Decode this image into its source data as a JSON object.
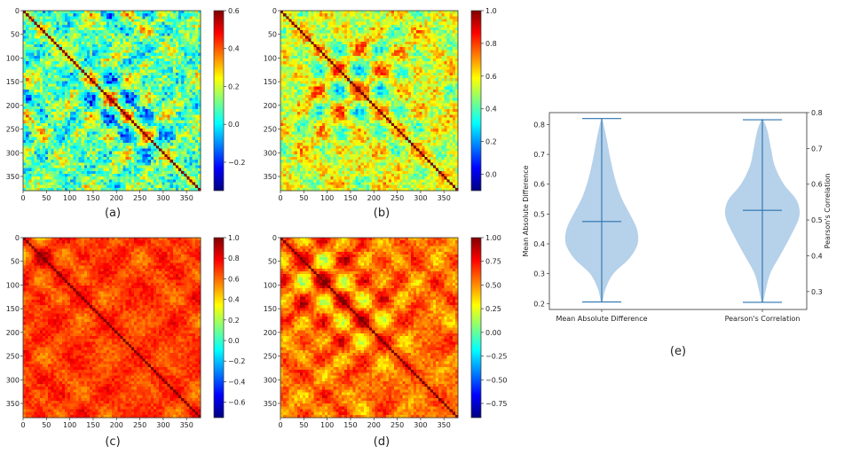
{
  "colors": {
    "jet": [
      "#00007f",
      "#0000ff",
      "#007fff",
      "#00ffff",
      "#7fff7f",
      "#ffff00",
      "#ff7f00",
      "#ff0000",
      "#7f0000"
    ],
    "violin_fill": "#a9c9e6",
    "violin_line": "#2b73b0"
  },
  "chart_data": [
    {
      "type": "heatmap",
      "panel_label": "(a)",
      "matrix_size": 380,
      "x_ticks": [
        0,
        50,
        100,
        150,
        200,
        250,
        300,
        350
      ],
      "y_ticks": [
        0,
        50,
        100,
        150,
        200,
        250,
        300,
        350
      ],
      "colorbar_range": [
        -0.35,
        0.6
      ],
      "colorbar_ticks": [
        -0.2,
        0.0,
        0.2,
        0.4,
        0.6
      ],
      "colorbar_tick_labels": [
        "−0.2",
        "0.0",
        "0.2",
        "0.4",
        "0.6"
      ],
      "colormap": "jet",
      "texture": {
        "mean": 0.1,
        "amp": 0.22,
        "block_freq": 0.13,
        "noise": 0.28,
        "seed": 11
      }
    },
    {
      "type": "heatmap",
      "panel_label": "(b)",
      "matrix_size": 380,
      "x_ticks": [
        0,
        50,
        100,
        150,
        200,
        250,
        300,
        350
      ],
      "y_ticks": [
        0,
        50,
        100,
        150,
        200,
        250,
        300,
        350
      ],
      "colorbar_range": [
        -0.1,
        1.0
      ],
      "colorbar_ticks": [
        0.0,
        0.2,
        0.4,
        0.6,
        0.8,
        1.0
      ],
      "colorbar_tick_labels": [
        "0.0",
        "0.2",
        "0.4",
        "0.6",
        "0.8",
        "1.0"
      ],
      "colormap": "jet",
      "texture": {
        "mean": 0.55,
        "amp": 0.2,
        "block_freq": 0.12,
        "noise": 0.25,
        "seed": 23
      }
    },
    {
      "type": "heatmap",
      "panel_label": "(c)",
      "matrix_size": 380,
      "x_ticks": [
        0,
        50,
        100,
        150,
        200,
        250,
        300,
        350
      ],
      "y_ticks": [
        0,
        50,
        100,
        150,
        200,
        250,
        300,
        350
      ],
      "colorbar_range": [
        -0.75,
        1.0
      ],
      "colorbar_ticks": [
        -0.6,
        -0.4,
        -0.2,
        0.0,
        0.2,
        0.4,
        0.6,
        0.8,
        1.0
      ],
      "colorbar_tick_labels": [
        "−0.6",
        "−0.4",
        "−0.2",
        "0.0",
        "0.2",
        "0.4",
        "0.6",
        "0.8",
        "1.0"
      ],
      "colormap": "jet",
      "texture": {
        "mean": 0.68,
        "amp": 0.18,
        "block_freq": 0.11,
        "noise": 0.16,
        "seed": 37
      }
    },
    {
      "type": "heatmap",
      "panel_label": "(d)",
      "matrix_size": 380,
      "x_ticks": [
        0,
        50,
        100,
        150,
        200,
        250,
        300,
        350
      ],
      "y_ticks": [
        0,
        50,
        100,
        150,
        200,
        250,
        300,
        350
      ],
      "colorbar_range": [
        -0.9,
        1.0
      ],
      "colorbar_ticks": [
        -0.75,
        -0.5,
        -0.25,
        0.0,
        0.25,
        0.5,
        0.75,
        1.0
      ],
      "colorbar_tick_labels": [
        "−0.75",
        "−0.50",
        "−0.25",
        "0.00",
        "0.25",
        "0.50",
        "0.75",
        "1.00"
      ],
      "colormap": "jet",
      "texture": {
        "mean": 0.55,
        "amp": 0.28,
        "block_freq": 0.12,
        "noise": 0.22,
        "seed": 51
      }
    },
    {
      "type": "violin",
      "panel_label": "(e)",
      "categories": [
        "Mean Absolute Difference",
        "Pearson's Correlation"
      ],
      "left_axis": {
        "label": "Mean Absolute Difference",
        "range": [
          0.18,
          0.84
        ],
        "ticks": [
          0.2,
          0.3,
          0.4,
          0.5,
          0.6,
          0.7,
          0.8
        ],
        "tick_labels": [
          "0.2",
          "0.3",
          "0.4",
          "0.5",
          "0.6",
          "0.7",
          "0.8"
        ]
      },
      "right_axis": {
        "label": "Pearson's Correlation",
        "range": [
          0.25,
          0.8
        ],
        "ticks": [
          0.3,
          0.4,
          0.5,
          0.6,
          0.7,
          0.8
        ],
        "tick_labels": [
          "0.3",
          "0.4",
          "0.5",
          "0.6",
          "0.7",
          "0.8"
        ]
      },
      "violins": [
        {
          "category": "Mean Absolute Difference",
          "axis": "left",
          "min": 0.205,
          "max": 0.82,
          "mean": 0.475,
          "profile": [
            [
              0.205,
              0.02
            ],
            [
              0.25,
              0.1
            ],
            [
              0.3,
              0.3
            ],
            [
              0.35,
              0.7
            ],
            [
              0.4,
              0.92
            ],
            [
              0.45,
              0.9
            ],
            [
              0.5,
              0.72
            ],
            [
              0.55,
              0.52
            ],
            [
              0.6,
              0.38
            ],
            [
              0.65,
              0.28
            ],
            [
              0.7,
              0.2
            ],
            [
              0.75,
              0.13
            ],
            [
              0.8,
              0.05
            ],
            [
              0.82,
              0.01
            ]
          ]
        },
        {
          "category": "Pearson's Correlation",
          "axis": "right",
          "min": 0.27,
          "max": 0.78,
          "mean": 0.527,
          "profile": [
            [
              0.27,
              0.02
            ],
            [
              0.3,
              0.08
            ],
            [
              0.35,
              0.2
            ],
            [
              0.4,
              0.45
            ],
            [
              0.45,
              0.7
            ],
            [
              0.5,
              0.92
            ],
            [
              0.53,
              0.95
            ],
            [
              0.56,
              0.85
            ],
            [
              0.6,
              0.55
            ],
            [
              0.65,
              0.32
            ],
            [
              0.7,
              0.22
            ],
            [
              0.75,
              0.13
            ],
            [
              0.78,
              0.02
            ]
          ]
        }
      ]
    }
  ]
}
